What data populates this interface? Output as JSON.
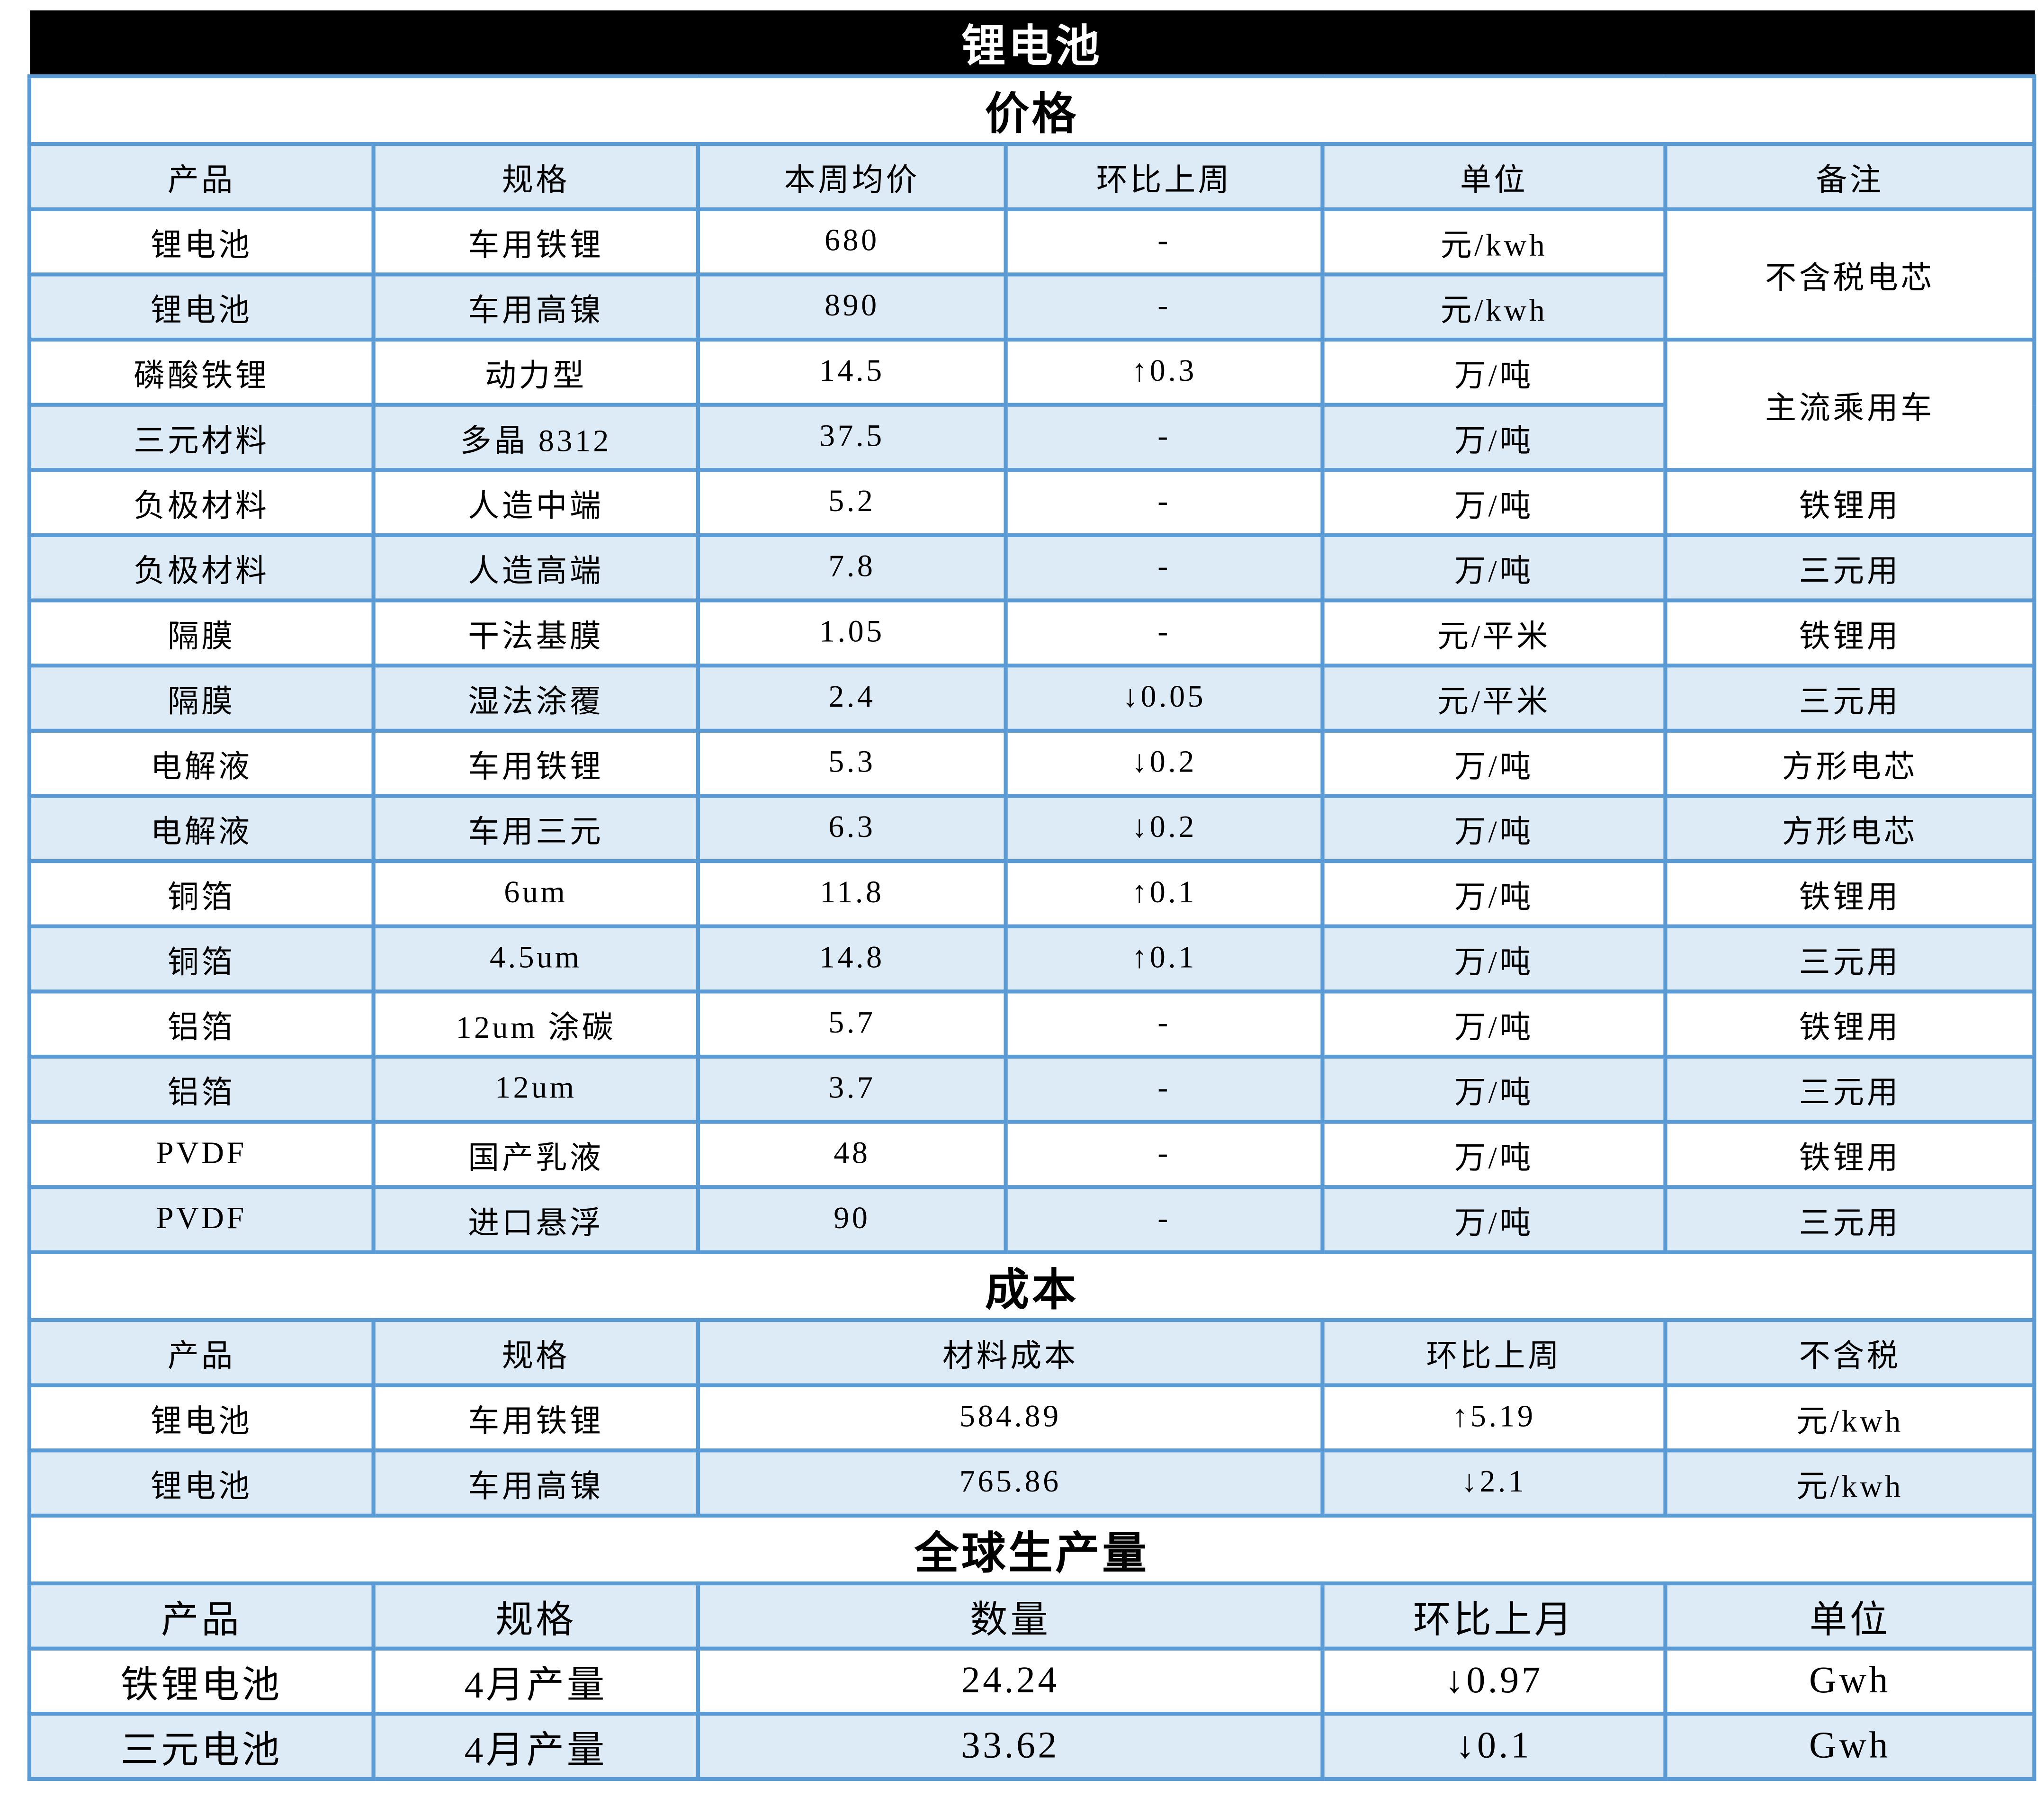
{
  "title": "锂电池",
  "colors": {
    "border": "#5b9bd5",
    "row_fill": "#ddebf7",
    "title_bg": "#000000"
  },
  "price": {
    "title": "价格",
    "headers": [
      "产品",
      "规格",
      "本周均价",
      "环比上周",
      "单位",
      "备注"
    ],
    "rows": [
      [
        "锂电池",
        "车用铁锂",
        "680",
        "-",
        "元/kwh"
      ],
      [
        "锂电池",
        "车用高镍",
        "890",
        "-",
        "元/kwh"
      ],
      [
        "磷酸铁锂",
        "动力型",
        "14.5",
        "↑0.3",
        "万/吨"
      ],
      [
        "三元材料",
        "多晶 8312",
        "37.5",
        "-",
        "万/吨"
      ],
      [
        "负极材料",
        "人造中端",
        "5.2",
        "-",
        "万/吨",
        "铁锂用"
      ],
      [
        "负极材料",
        "人造高端",
        "7.8",
        "-",
        "万/吨",
        "三元用"
      ],
      [
        "隔膜",
        "干法基膜",
        "1.05",
        "-",
        "元/平米",
        "铁锂用"
      ],
      [
        "隔膜",
        "湿法涂覆",
        "2.4",
        "↓0.05",
        "元/平米",
        "三元用"
      ],
      [
        "电解液",
        "车用铁锂",
        "5.3",
        "↓0.2",
        "万/吨",
        "方形电芯"
      ],
      [
        "电解液",
        "车用三元",
        "6.3",
        "↓0.2",
        "万/吨",
        "方形电芯"
      ],
      [
        "铜箔",
        "6um",
        "11.8",
        "↑0.1",
        "万/吨",
        "铁锂用"
      ],
      [
        "铜箔",
        "4.5um",
        "14.8",
        "↑0.1",
        "万/吨",
        "三元用"
      ],
      [
        "铝箔",
        "12um 涂碳",
        "5.7",
        "-",
        "万/吨",
        "铁锂用"
      ],
      [
        "铝箔",
        "12um",
        "3.7",
        "-",
        "万/吨",
        "三元用"
      ],
      [
        "PVDF",
        "国产乳液",
        "48",
        "-",
        "万/吨",
        "铁锂用"
      ],
      [
        "PVDF",
        "进口悬浮",
        "90",
        "-",
        "万/吨",
        "三元用"
      ]
    ],
    "merged_notes": [
      "不含税电芯",
      "主流乘用车"
    ]
  },
  "cost": {
    "title": "成本",
    "headers": [
      "产品",
      "规格",
      "材料成本",
      "环比上周",
      "不含税"
    ],
    "rows": [
      [
        "锂电池",
        "车用铁锂",
        "584.89",
        "↑5.19",
        "元/kwh"
      ],
      [
        "锂电池",
        "车用高镍",
        "765.86",
        "↓2.1",
        "元/kwh"
      ]
    ]
  },
  "production": {
    "title": "全球生产量",
    "headers": [
      "产品",
      "规格",
      "数量",
      "环比上月",
      "单位"
    ],
    "rows": [
      [
        "铁锂电池",
        "4月产量",
        "24.24",
        "↓0.97",
        "Gwh"
      ],
      [
        "三元电池",
        "4月产量",
        "33.62",
        "↓0.1",
        "Gwh"
      ]
    ]
  }
}
